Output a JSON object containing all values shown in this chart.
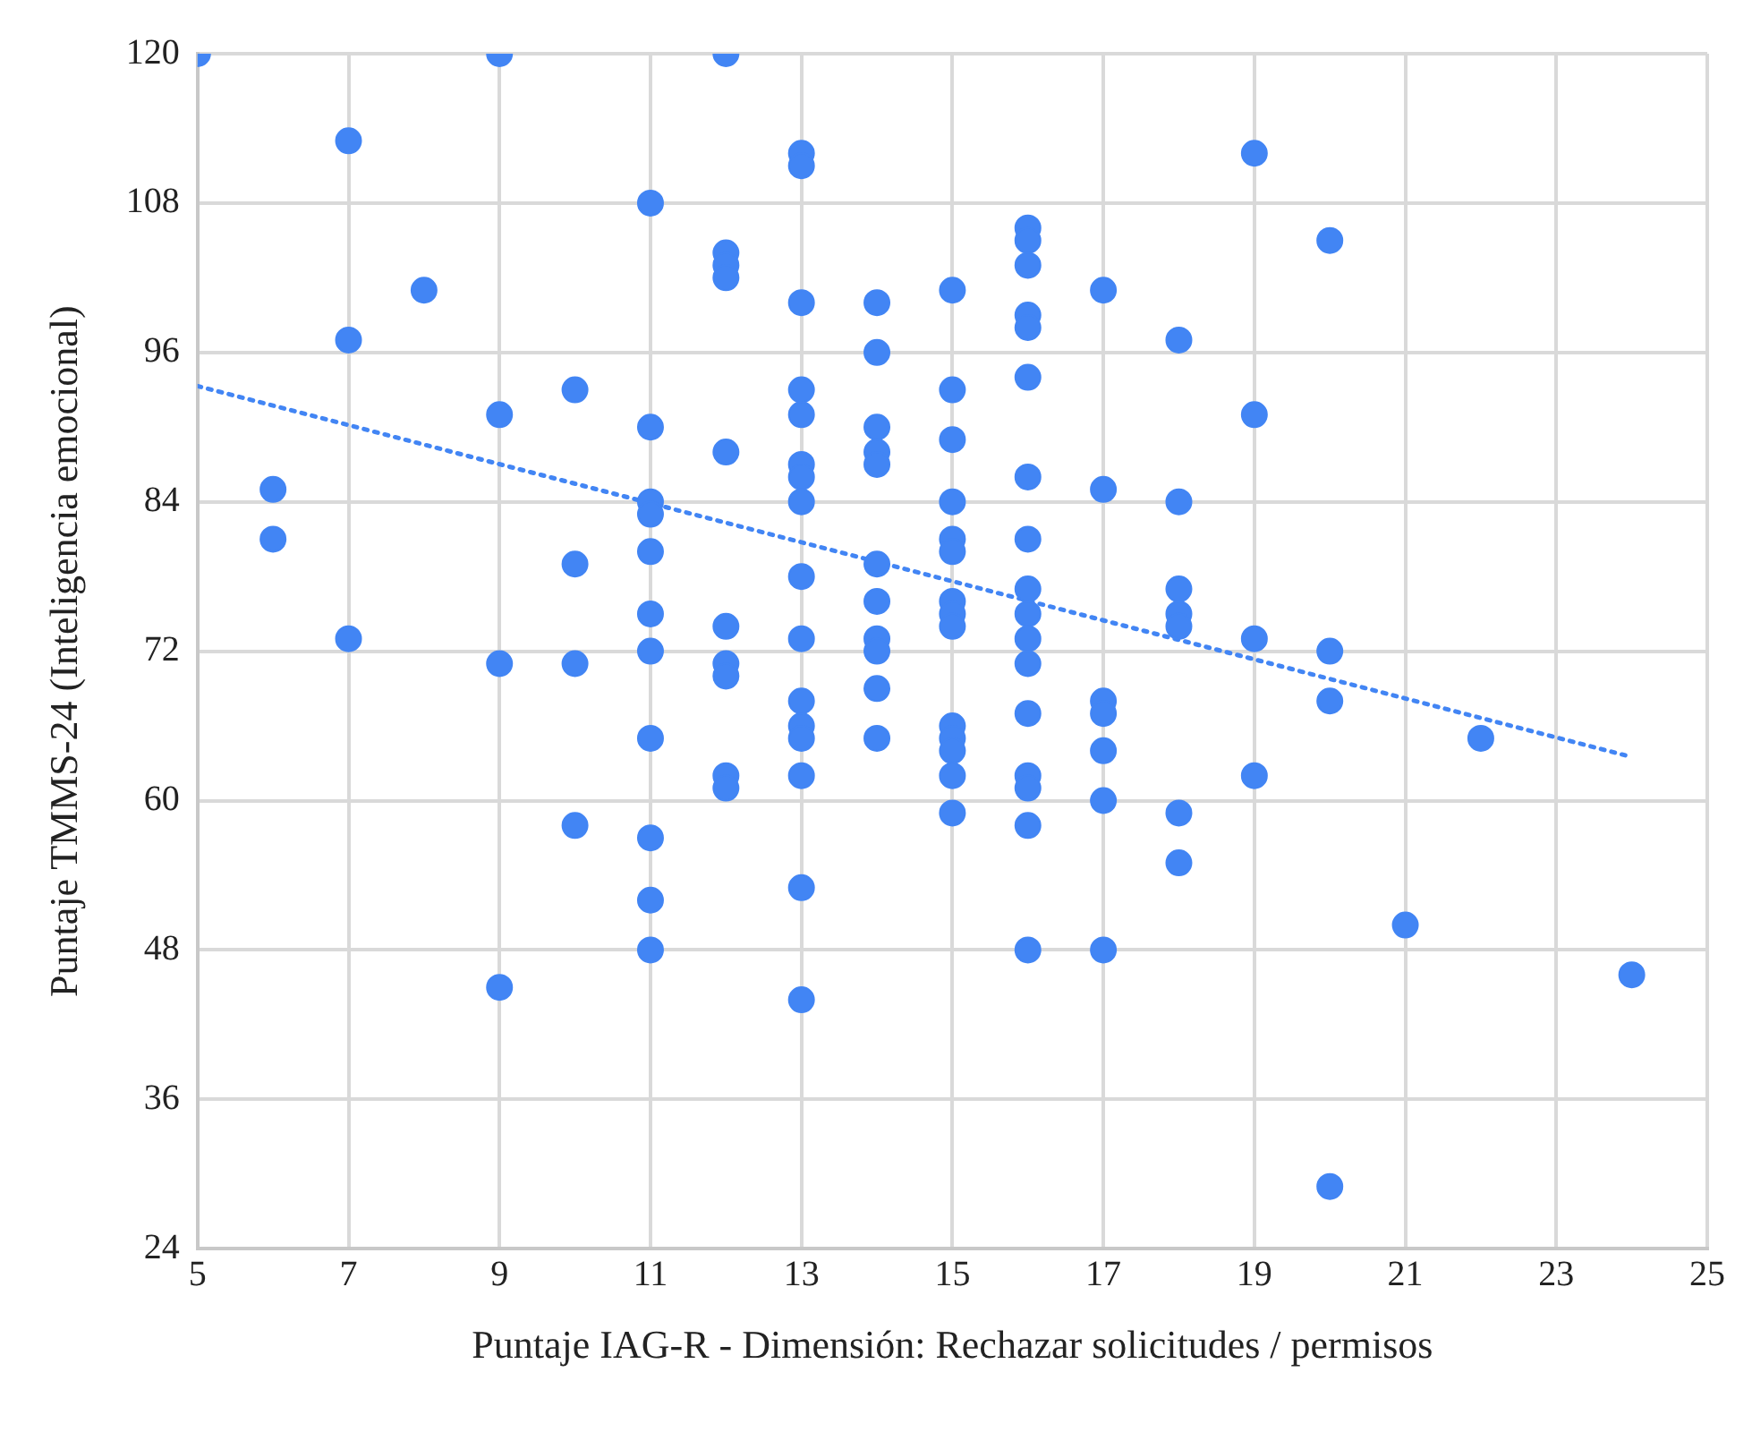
{
  "chart_data": {
    "type": "scatter",
    "xlabel": "Puntaje IAG-R - Dimensión: Rechazar solicitudes / permisos",
    "ylabel": "Puntaje TMMS-24 (Inteligencia emocional)",
    "xlim": [
      5,
      25
    ],
    "xticks": [
      5,
      7,
      9,
      11,
      13,
      15,
      17,
      19,
      21,
      23,
      25
    ],
    "ylim": [
      24,
      120
    ],
    "yticks": [
      24,
      36,
      48,
      60,
      72,
      84,
      96,
      108,
      120
    ],
    "grid": true,
    "legend": false,
    "marker": "circle",
    "series": [
      {
        "color": "#4285f4",
        "x": [
          5,
          6,
          6,
          7,
          7,
          7,
          8,
          9,
          9,
          9,
          9,
          10,
          10,
          10,
          10,
          11,
          11,
          11,
          11,
          11,
          11,
          11,
          11,
          11,
          11,
          11,
          12,
          12,
          12,
          12,
          12,
          12,
          12,
          12,
          12,
          12,
          13,
          13,
          13,
          13,
          13,
          13,
          13,
          13,
          13,
          13,
          13,
          13,
          13,
          13,
          13,
          13,
          14,
          14,
          14,
          14,
          14,
          14,
          14,
          14,
          14,
          14,
          14,
          15,
          15,
          15,
          15,
          15,
          15,
          15,
          15,
          15,
          15,
          15,
          15,
          15,
          15,
          16,
          16,
          16,
          16,
          16,
          16,
          16,
          16,
          16,
          16,
          16,
          16,
          16,
          16,
          16,
          16,
          16,
          17,
          17,
          17,
          17,
          17,
          17,
          17,
          18,
          18,
          18,
          18,
          18,
          18,
          18,
          19,
          19,
          19,
          19,
          20,
          20,
          20,
          20,
          21,
          22,
          24
        ],
        "values": [
          120,
          85,
          81,
          113,
          97,
          73,
          101,
          120,
          91,
          71,
          45,
          93,
          79,
          71,
          58,
          108,
          90,
          84,
          83,
          80,
          75,
          72,
          65,
          57,
          52,
          48,
          120,
          104,
          103,
          102,
          88,
          74,
          71,
          70,
          62,
          61,
          112,
          111,
          100,
          93,
          91,
          87,
          86,
          84,
          78,
          73,
          68,
          66,
          65,
          62,
          53,
          44,
          100,
          96,
          90,
          88,
          87,
          79,
          76,
          73,
          72,
          69,
          65,
          101,
          93,
          89,
          84,
          81,
          80,
          76,
          75,
          74,
          66,
          65,
          64,
          62,
          59,
          106,
          105,
          103,
          99,
          98,
          94,
          86,
          81,
          77,
          75,
          73,
          71,
          67,
          62,
          61,
          58,
          48,
          101,
          85,
          68,
          67,
          64,
          60,
          48,
          97,
          84,
          77,
          75,
          74,
          59,
          55,
          112,
          91,
          73,
          62,
          105,
          72,
          68,
          29,
          50,
          65,
          46
        ]
      },
      {
        "type": "line",
        "color": "#4285f4",
        "marker": "none",
        "line_style": "dotted",
        "x": [
          5,
          24
        ],
        "values": [
          93.3,
          63.5
        ]
      }
    ]
  }
}
